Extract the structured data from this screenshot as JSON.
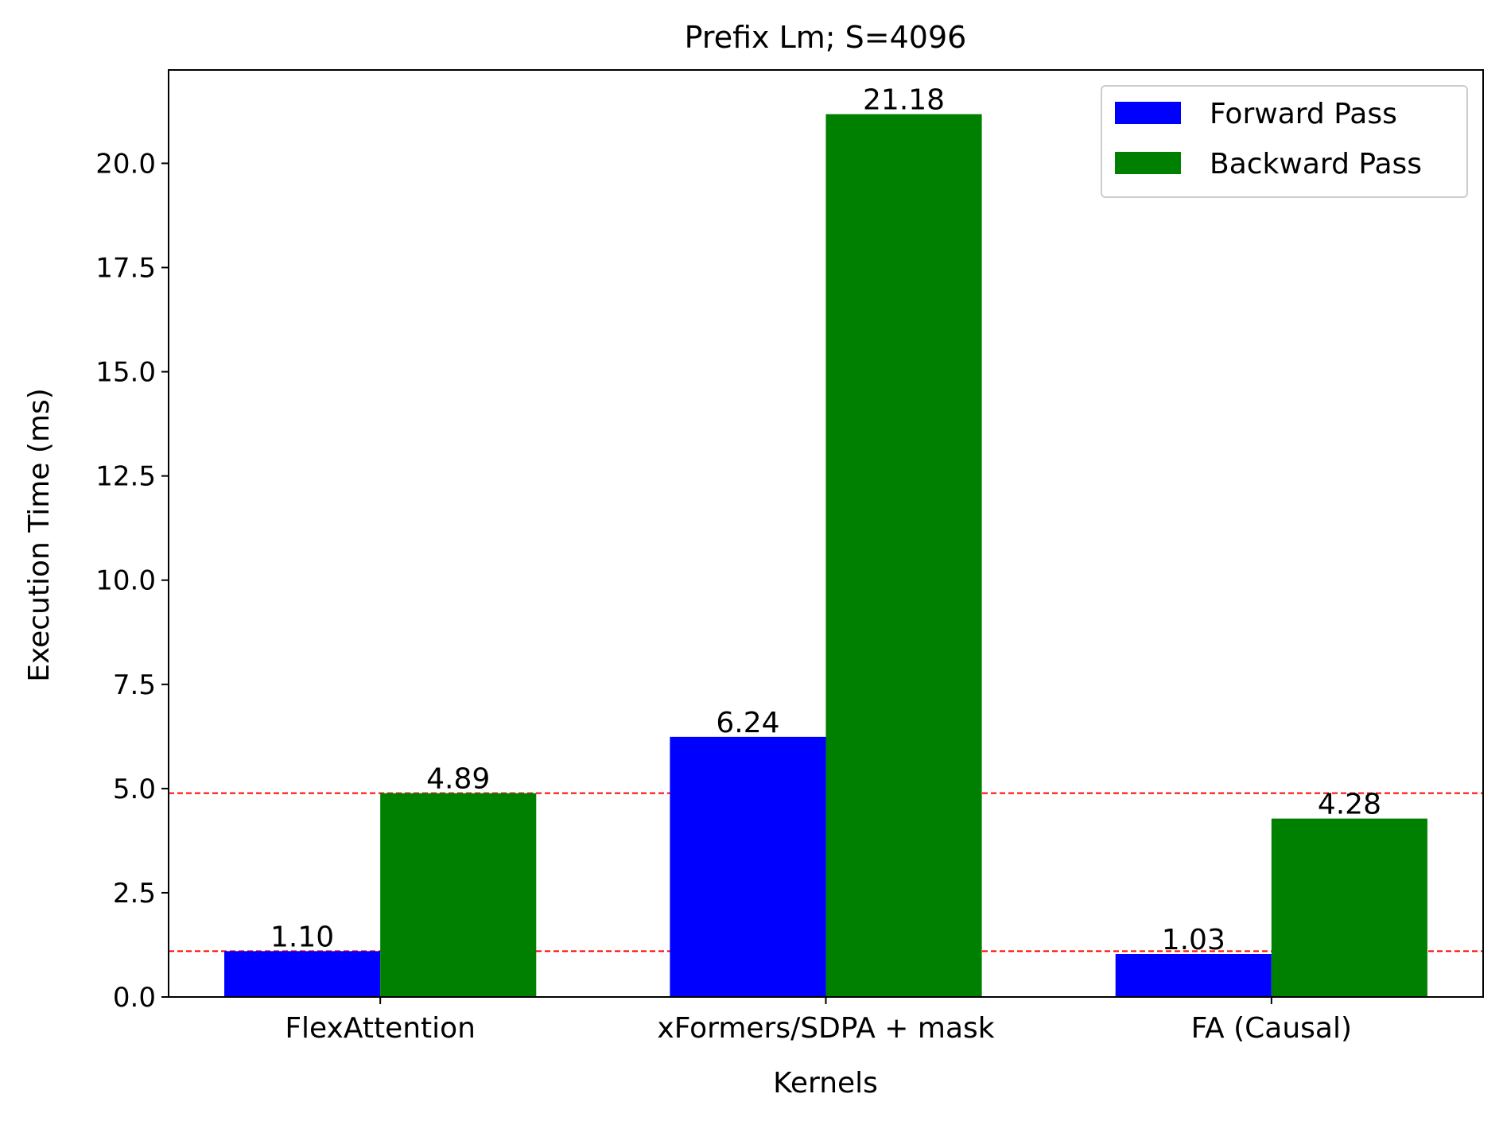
{
  "chart_data": {
    "type": "bar",
    "title": "Prefix Lm; S=4096",
    "xlabel": "Kernels",
    "ylabel": "Execution Time (ms)",
    "categories": [
      "FlexAttention",
      "xFormers/SDPA + mask",
      "FA (Causal)"
    ],
    "series": [
      {
        "name": "Forward Pass",
        "color": "#0000ff",
        "values": [
          1.1,
          6.24,
          1.03
        ],
        "labels": [
          "1.10",
          "6.24",
          "1.03"
        ]
      },
      {
        "name": "Backward Pass",
        "color": "#008000",
        "values": [
          4.89,
          21.18,
          4.28
        ],
        "labels": [
          "4.89",
          "21.18",
          "4.28"
        ]
      }
    ],
    "ylim": [
      0,
      22.24
    ],
    "yticks": [
      0.0,
      2.5,
      5.0,
      7.5,
      10.0,
      12.5,
      15.0,
      17.5,
      20.0
    ],
    "ytick_labels": [
      "0.0",
      "2.5",
      "5.0",
      "7.5",
      "10.0",
      "12.5",
      "15.0",
      "17.5",
      "20.0"
    ],
    "reference_lines": [
      {
        "value": 4.89,
        "color": "#ff0000",
        "style": "dashed"
      },
      {
        "value": 1.1,
        "color": "#ff0000",
        "style": "dashed"
      }
    ],
    "grid": false,
    "legend": {
      "position": "top-right"
    }
  }
}
